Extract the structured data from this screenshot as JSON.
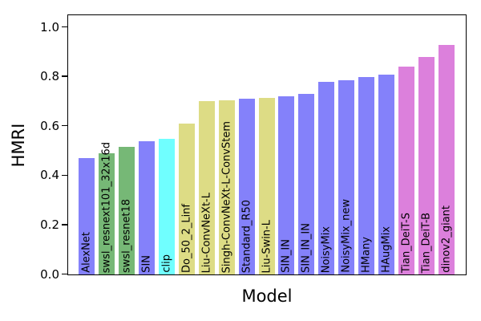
{
  "chart_data": {
    "type": "bar",
    "title": "",
    "xlabel": "Model",
    "ylabel": "HMRI",
    "ylim": [
      0,
      1.05
    ],
    "grid": false,
    "legend": "none",
    "tick_label_style": "rotated-90-inside-bars",
    "yticks": [
      {
        "label": "0.0",
        "value": 0.0
      },
      {
        "label": "0.2",
        "value": 0.2
      },
      {
        "label": "0.4",
        "value": 0.4
      },
      {
        "label": "0.6",
        "value": 0.6
      },
      {
        "label": "0.8",
        "value": 0.8
      },
      {
        "label": "1.0",
        "value": 1.0
      }
    ],
    "palette": {
      "blue": "#8481fa",
      "green": "#76b876",
      "cyan": "#70ffff",
      "yellow": "#dddc85",
      "pink": "#dc80dc"
    },
    "categories": [
      "AlexNet",
      "swsl_resnext101_32x16d",
      "swsl_resnet18",
      "SIN",
      "clip",
      "Do_50_2_Linf",
      "Liu-ConvNeXt-L",
      "Singh-ConvNeXt-L-ConvStem",
      "Standard_R50",
      "Liu-Swin-L",
      "SIN_IN",
      "SIN_IN_IN",
      "NoisyMix",
      "NoisyMix_new",
      "HMany",
      "HAugMix",
      "Tian_DeiT-S",
      "Tian_DeiT-B",
      "dinov2_giant"
    ],
    "values": [
      0.47,
      0.49,
      0.515,
      0.54,
      0.55,
      0.61,
      0.7,
      0.705,
      0.71,
      0.715,
      0.72,
      0.73,
      0.78,
      0.785,
      0.8,
      0.81,
      0.84,
      0.88,
      0.93
    ],
    "colors": [
      "#8481fa",
      "#76b876",
      "#76b876",
      "#8481fa",
      "#70ffff",
      "#dddc85",
      "#dddc85",
      "#dddc85",
      "#8481fa",
      "#dddc85",
      "#8481fa",
      "#8481fa",
      "#8481fa",
      "#8481fa",
      "#8481fa",
      "#8481fa",
      "#dc80dc",
      "#dc80dc",
      "#dc80dc"
    ]
  }
}
